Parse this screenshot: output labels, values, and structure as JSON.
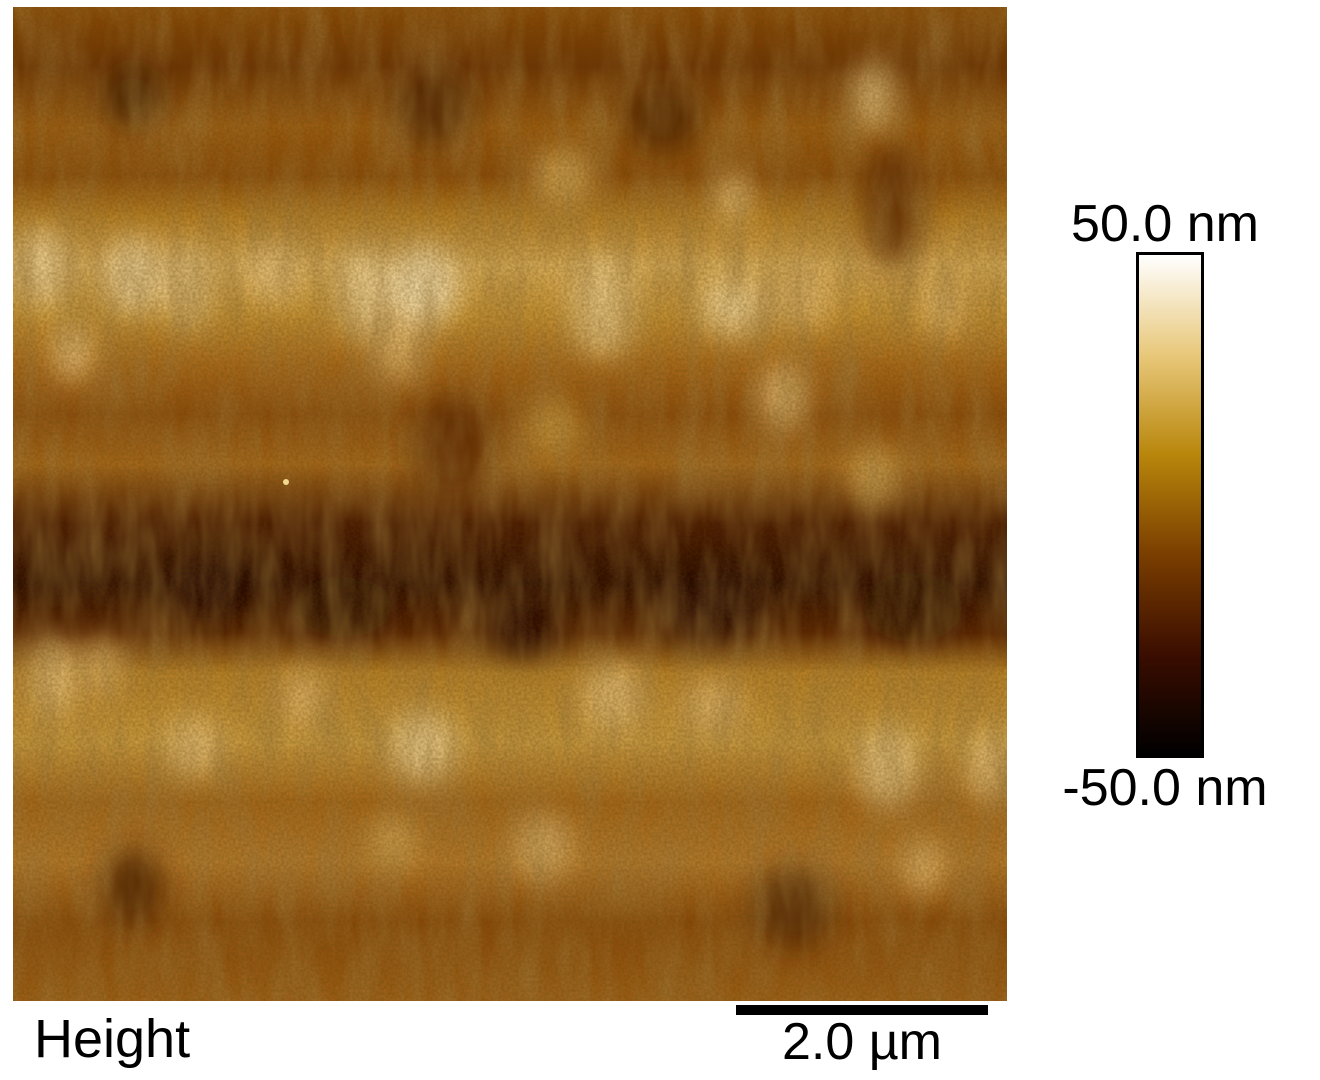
{
  "image": {
    "channel_label": "Height",
    "scale_bar_label": "2.0 µm",
    "surface_description": "orange-brown AFM height map with bright horizontal banded ridges and a dark horizontal trough"
  },
  "colorbar": {
    "max_label": "50.0 nm",
    "min_label": "-50.0 nm",
    "max_value": 50.0,
    "min_value": -50.0,
    "unit": "nm",
    "colors": [
      "#000000",
      "#3a0d00",
      "#7a3e00",
      "#b8860b",
      "#e8c87a",
      "#ffffff"
    ]
  }
}
